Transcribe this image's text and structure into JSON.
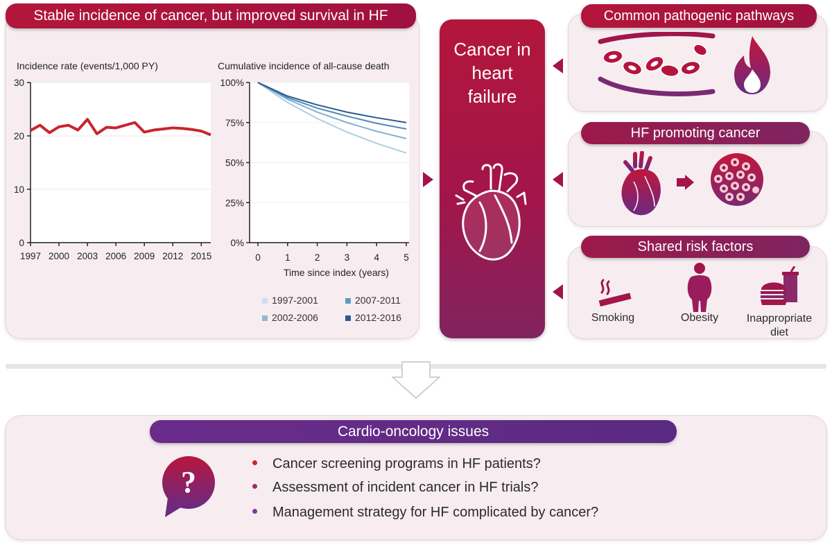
{
  "top_left": {
    "title": "Stable incidence of cancer, but improved survival in HF"
  },
  "chart_data": [
    {
      "type": "line",
      "title": "Incidence rate (events/1,000 PY)",
      "x": [
        1997,
        1998,
        1999,
        2000,
        2001,
        2002,
        2003,
        2004,
        2005,
        2006,
        2007,
        2008,
        2009,
        2010,
        2011,
        2012,
        2013,
        2014,
        2015,
        2016
      ],
      "values": [
        21.0,
        22.0,
        20.6,
        21.7,
        22.0,
        21.1,
        23.1,
        20.4,
        21.6,
        21.5,
        22.0,
        22.5,
        20.7,
        21.1,
        21.3,
        21.5,
        21.4,
        21.2,
        20.9,
        20.2
      ],
      "xticks": [
        "1997",
        "2000",
        "2003",
        "2006",
        "2009",
        "2012",
        "2015"
      ],
      "yticks": [
        "0",
        "10",
        "20",
        "30"
      ],
      "ylim": [
        0,
        30
      ],
      "color": "#c8252f"
    },
    {
      "type": "line",
      "title": "Cumulative incidence of all-cause death",
      "xlabel": "Time since index (years)",
      "x": [
        0,
        1,
        2,
        3,
        4,
        5
      ],
      "xticks": [
        "0",
        "1",
        "2",
        "3",
        "4",
        "5"
      ],
      "yticks": [
        "0%",
        "25%",
        "50%",
        "75%",
        "100%"
      ],
      "ylim": [
        0,
        100
      ],
      "series": [
        {
          "name": "1997-2001",
          "values": [
            100,
            87.5,
            77.5,
            69,
            62,
            56
          ],
          "color": "#a9cfe2"
        },
        {
          "name": "2002-2006",
          "values": [
            100,
            89.5,
            81.5,
            75,
            69.5,
            65
          ],
          "color": "#7fb0d0"
        },
        {
          "name": "2007-2011",
          "values": [
            100,
            90.5,
            84,
            79,
            74.5,
            71
          ],
          "color": "#5088b8"
        },
        {
          "name": "2012-2016",
          "values": [
            100,
            91.5,
            86,
            81.5,
            78,
            75
          ],
          "color": "#2c5a92"
        }
      ]
    }
  ],
  "center": {
    "title": "Cancer in heart failure"
  },
  "right": {
    "pathways_title": "Common pathogenic pathways",
    "promoting_title": "HF promoting cancer",
    "risk_title": "Shared risk factors",
    "risk_items": [
      "Smoking",
      "Obesity",
      "Inappropriate diet"
    ]
  },
  "bottom": {
    "title": "Cardio-oncology issues",
    "question_mark": "?",
    "issues": [
      "Cancer screening programs in HF patients?",
      "Assessment of incident cancer in HF trials?",
      "Management strategy for HF complicated by cancer?"
    ],
    "dot_colors": [
      "#c8252f",
      "#a02a6a",
      "#7a3aa2"
    ]
  }
}
